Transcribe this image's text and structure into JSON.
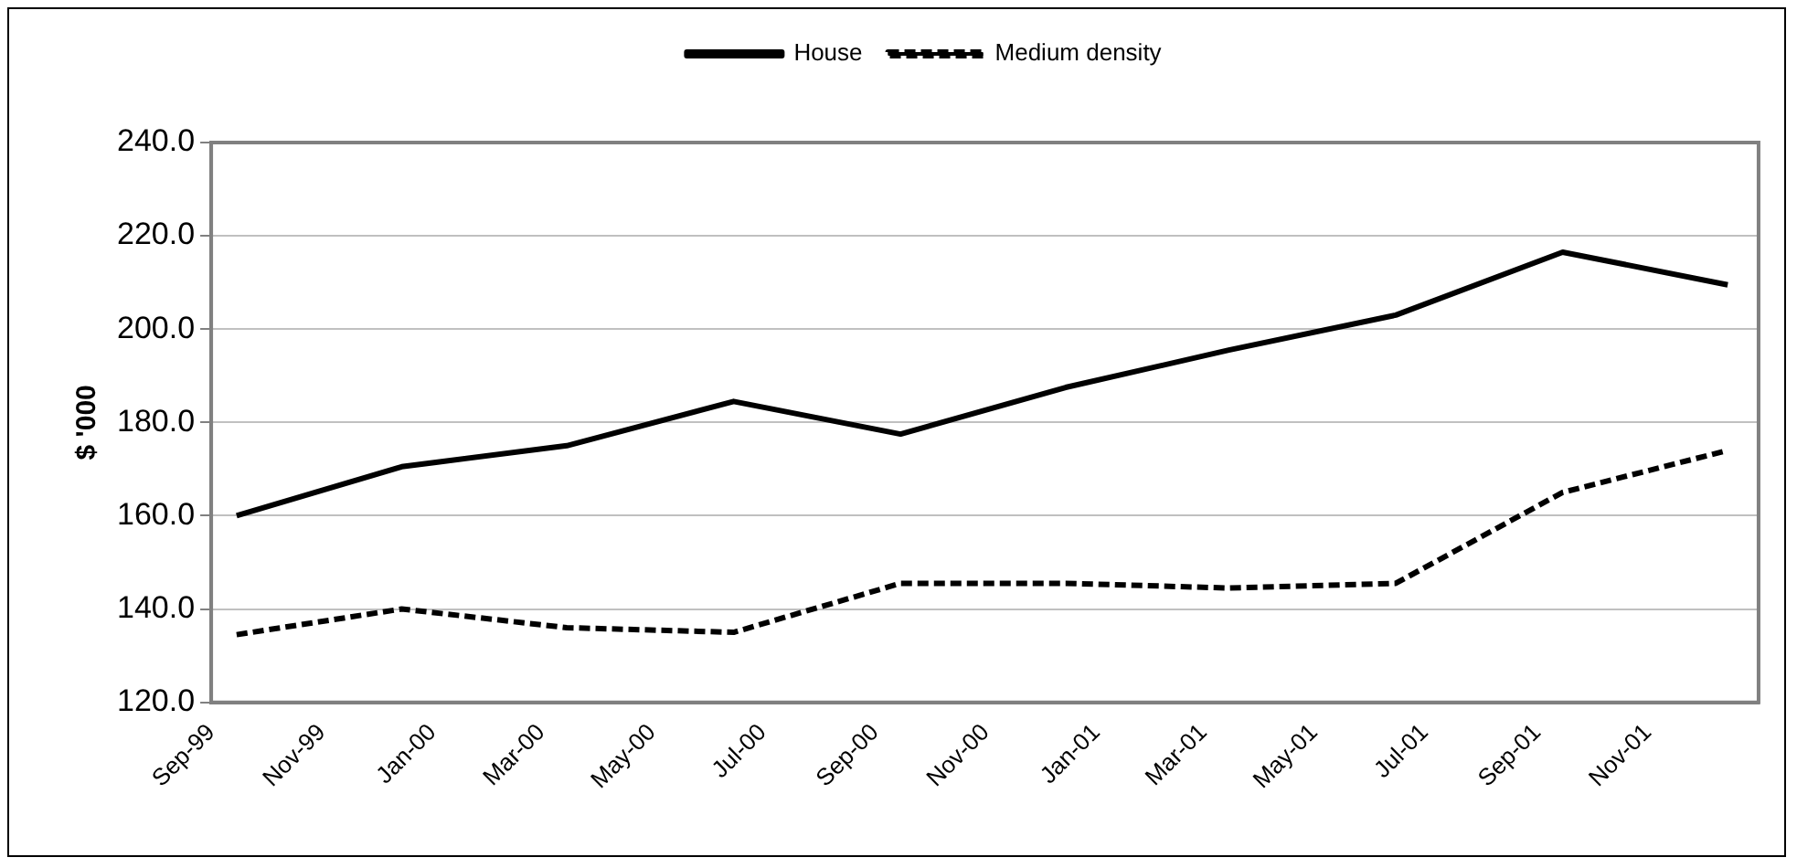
{
  "chart_data": {
    "type": "line",
    "ylabel": "$ '000",
    "legend": "top",
    "grid": "y",
    "marker": "none",
    "x": [
      "1999-09-15",
      "1999-12-15",
      "2000-03-15",
      "2000-06-15",
      "2000-09-15",
      "2000-12-15",
      "2001-03-15",
      "2001-06-15",
      "2001-09-15",
      "2001-12-15"
    ],
    "series": [
      {
        "name": "House",
        "color": "#000000",
        "line_style": "solid",
        "values": [
          160,
          170.5,
          175,
          184.5,
          177.5,
          187.5,
          195.5,
          203,
          216.5,
          209.5
        ]
      },
      {
        "name": "Medium density",
        "color": "#000000",
        "line_style": "dashed",
        "values": [
          134.5,
          140,
          136,
          135,
          145.5,
          145.5,
          144.5,
          145.5,
          165,
          174
        ]
      }
    ],
    "xlim": [
      "1999-09-01",
      "2002-01-01"
    ],
    "xticks": [
      {
        "value": "1999-09-01",
        "label": "Sep-99"
      },
      {
        "value": "1999-11-01",
        "label": "Nov-99"
      },
      {
        "value": "2000-01-01",
        "label": "Jan-00"
      },
      {
        "value": "2000-03-01",
        "label": "Mar-00"
      },
      {
        "value": "2000-05-01",
        "label": "May-00"
      },
      {
        "value": "2000-07-01",
        "label": "Jul-00"
      },
      {
        "value": "2000-09-01",
        "label": "Sep-00"
      },
      {
        "value": "2000-11-01",
        "label": "Nov-00"
      },
      {
        "value": "2001-01-01",
        "label": "Jan-01"
      },
      {
        "value": "2001-03-01",
        "label": "Mar-01"
      },
      {
        "value": "2001-05-01",
        "label": "May-01"
      },
      {
        "value": "2001-07-01",
        "label": "Jul-01"
      },
      {
        "value": "2001-09-01",
        "label": "Sep-01"
      },
      {
        "value": "2001-11-01",
        "label": "Nov-01"
      },
      {
        "value": "2002-01-01",
        "label": null
      }
    ],
    "ylim": [
      120,
      240
    ],
    "yticks": [
      {
        "value": 120,
        "label": "120.0"
      },
      {
        "value": 140,
        "label": "140.0"
      },
      {
        "value": 160,
        "label": "160.0"
      },
      {
        "value": 180,
        "label": "180.0"
      },
      {
        "value": 200,
        "label": "200.0"
      },
      {
        "value": 220,
        "label": "220.0"
      },
      {
        "value": 240,
        "label": "240.0"
      }
    ]
  }
}
